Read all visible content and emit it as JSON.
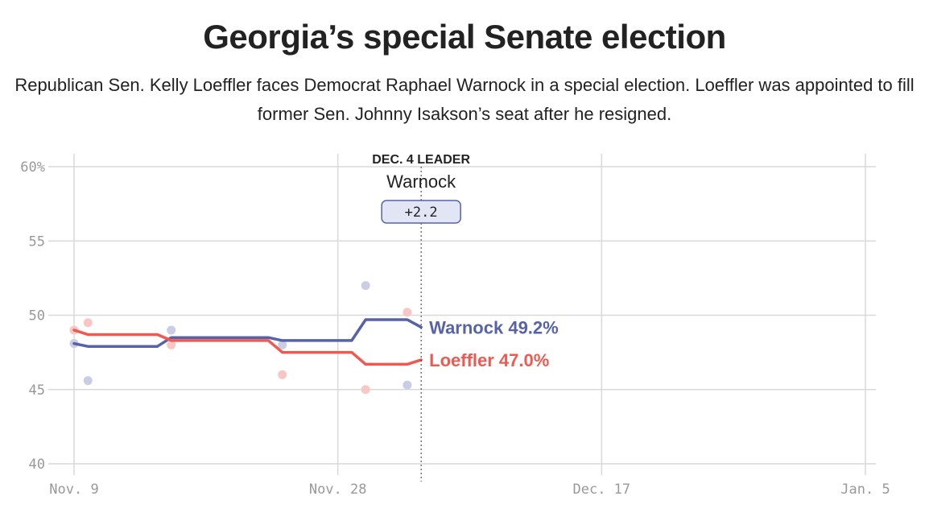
{
  "title": "Georgia’s special Senate election",
  "subtitle": "Republican Sen. Kelly Loeffler faces Democrat Raphael Warnock in a special election. Loeffler was appointed to fill former Sen. Johnny Isakson’s seat after he resigned.",
  "colors": {
    "warnock": "#5763a8",
    "loeffler": "#ee5a52",
    "warnock_dot": "#c9cde6",
    "loeffler_dot": "#f9c7c3",
    "grid": "#d9d9d9",
    "badge_bg": "#e2e5f3"
  },
  "chart_data": {
    "type": "line",
    "title": "Georgia’s special Senate election",
    "x_unit": "day",
    "x_domain": [
      "2020-11-09",
      "2021-01-05"
    ],
    "ylim": [
      40,
      60
    ],
    "yticks": [
      40,
      45,
      50,
      55,
      60
    ],
    "ytick_labels": [
      "40",
      "45",
      "50",
      "55",
      "60%"
    ],
    "xticks": [
      "2020-11-09",
      "2020-11-28",
      "2020-12-17",
      "2021-01-05"
    ],
    "xtick_labels": [
      "Nov. 9",
      "Nov. 28",
      "Dec. 17",
      "Jan. 5"
    ],
    "grid": true,
    "series": [
      {
        "name": "Warnock",
        "end_label": "Warnock 49.2%",
        "points": [
          [
            "2020-11-09",
            48.1
          ],
          [
            "2020-11-10",
            47.9
          ],
          [
            "2020-11-15",
            47.9
          ],
          [
            "2020-11-16",
            48.5
          ],
          [
            "2020-11-23",
            48.5
          ],
          [
            "2020-11-24",
            48.3
          ],
          [
            "2020-11-29",
            48.3
          ],
          [
            "2020-11-30",
            49.7
          ],
          [
            "2020-12-03",
            49.7
          ],
          [
            "2020-12-04",
            49.2
          ]
        ],
        "polls": [
          [
            "2020-11-09",
            48.1
          ],
          [
            "2020-11-10",
            45.6
          ],
          [
            "2020-11-16",
            49.0
          ],
          [
            "2020-11-24",
            48.0
          ],
          [
            "2020-11-30",
            52.0
          ],
          [
            "2020-12-03",
            45.3
          ]
        ]
      },
      {
        "name": "Loeffler",
        "end_label": "Loeffler 47.0%",
        "points": [
          [
            "2020-11-09",
            49.0
          ],
          [
            "2020-11-10",
            48.7
          ],
          [
            "2020-11-15",
            48.7
          ],
          [
            "2020-11-16",
            48.3
          ],
          [
            "2020-11-23",
            48.3
          ],
          [
            "2020-11-24",
            47.5
          ],
          [
            "2020-11-29",
            47.5
          ],
          [
            "2020-11-30",
            46.7
          ],
          [
            "2020-12-03",
            46.7
          ],
          [
            "2020-12-04",
            47.0
          ]
        ],
        "polls": [
          [
            "2020-11-09",
            49.0
          ],
          [
            "2020-11-10",
            49.5
          ],
          [
            "2020-11-16",
            48.0
          ],
          [
            "2020-11-24",
            46.0
          ],
          [
            "2020-11-30",
            45.0
          ],
          [
            "2020-12-03",
            50.2
          ]
        ]
      }
    ],
    "annotation": {
      "date": "2020-12-04",
      "label": "DEC. 4 LEADER",
      "leader": "Warnock",
      "margin": "+2.2"
    }
  }
}
